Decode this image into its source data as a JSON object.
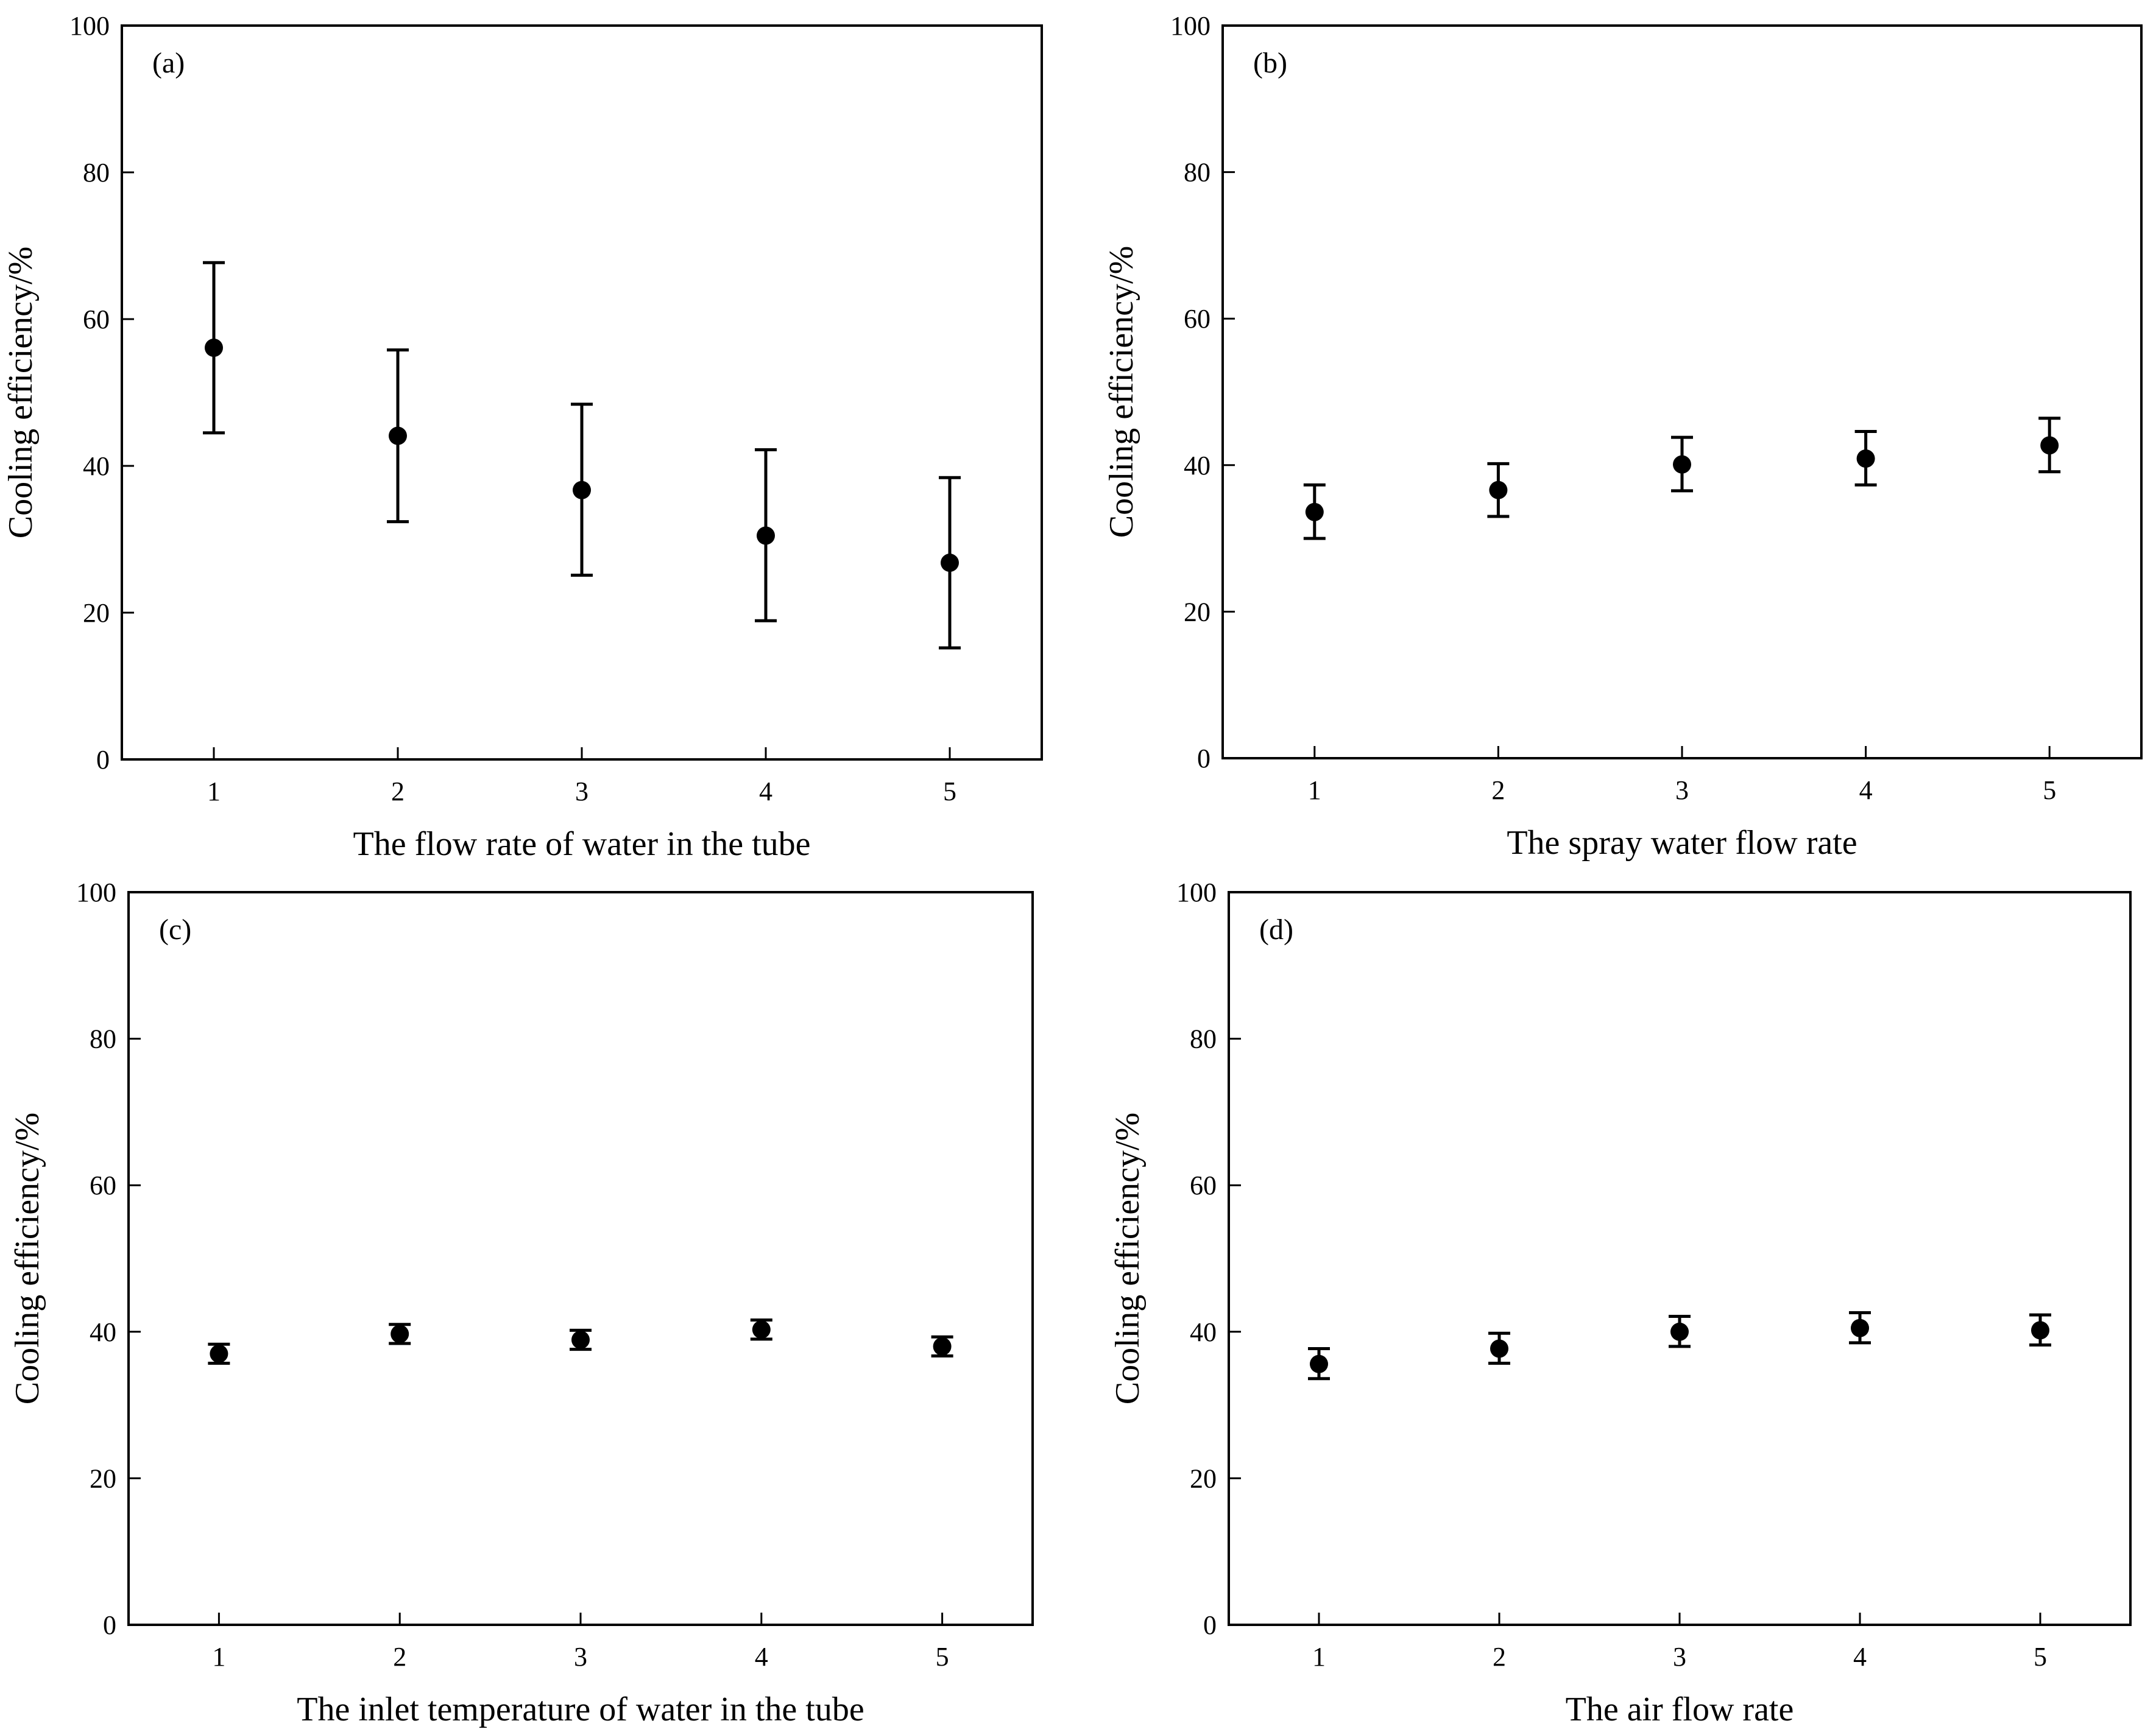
{
  "chart_data": [
    {
      "type": "scatter",
      "panel_label": "(a)",
      "title": "",
      "xlabel": "The flow rate of water in the tube",
      "ylabel": "Cooling efficiency/%",
      "x": [
        1,
        2,
        3,
        4,
        5
      ],
      "x_tick_labels": [
        "1",
        "2",
        "3",
        "4",
        "5"
      ],
      "xlim": [
        0.5,
        5.5
      ],
      "ylim": [
        0,
        100
      ],
      "y_ticks": [
        0,
        20,
        40,
        60,
        80,
        100
      ],
      "y_tick_labels": [
        "0",
        "20",
        "40",
        "60",
        "80",
        "100"
      ],
      "values": [
        56.1,
        44.1,
        36.7,
        30.5,
        26.8
      ],
      "error_low": [
        44.5,
        32.4,
        25.1,
        18.9,
        15.2
      ],
      "error_high": [
        67.7,
        55.8,
        48.4,
        42.2,
        38.4
      ],
      "grid": false,
      "marker_color": "#000000"
    },
    {
      "type": "scatter",
      "panel_label": "(b)",
      "title": "",
      "xlabel": "The spray water flow rate",
      "ylabel": "Cooling efficiency/%",
      "x": [
        1,
        2,
        3,
        4,
        5
      ],
      "x_tick_labels": [
        "1",
        "2",
        "3",
        "4",
        "5"
      ],
      "xlim": [
        0.5,
        5.5
      ],
      "ylim": [
        0,
        100
      ],
      "y_ticks": [
        0,
        20,
        40,
        60,
        80,
        100
      ],
      "y_tick_labels": [
        "0",
        "20",
        "40",
        "60",
        "80",
        "100"
      ],
      "values": [
        33.6,
        36.6,
        40.1,
        40.9,
        42.7
      ],
      "error_low": [
        30.0,
        33.0,
        36.5,
        37.3,
        39.1
      ],
      "error_high": [
        37.3,
        40.2,
        43.8,
        44.6,
        46.4
      ],
      "grid": false,
      "marker_color": "#000000"
    },
    {
      "type": "scatter",
      "panel_label": "(c)",
      "title": "",
      "xlabel": "The inlet temperature of water in the tube",
      "ylabel": "Cooling efficiency/%",
      "x": [
        1,
        2,
        3,
        4,
        5
      ],
      "x_tick_labels": [
        "1",
        "2",
        "3",
        "4",
        "5"
      ],
      "xlim": [
        0.5,
        5.5
      ],
      "ylim": [
        0,
        100
      ],
      "y_ticks": [
        0,
        20,
        40,
        60,
        80,
        100
      ],
      "y_tick_labels": [
        "0",
        "20",
        "40",
        "60",
        "80",
        "100"
      ],
      "values": [
        37.0,
        39.7,
        38.9,
        40.3,
        38.0
      ],
      "error_low": [
        35.7,
        38.4,
        37.6,
        39.0,
        36.7
      ],
      "error_high": [
        38.3,
        41.0,
        40.2,
        41.6,
        39.3
      ],
      "grid": false,
      "marker_color": "#000000"
    },
    {
      "type": "scatter",
      "panel_label": "(d)",
      "title": "",
      "xlabel": "The air flow rate",
      "ylabel": "Cooling efficiency/%",
      "x": [
        1,
        2,
        3,
        4,
        5
      ],
      "x_tick_labels": [
        "1",
        "2",
        "3",
        "4",
        "5"
      ],
      "xlim": [
        0.5,
        5.5
      ],
      "ylim": [
        0,
        100
      ],
      "y_ticks": [
        0,
        20,
        40,
        60,
        80,
        100
      ],
      "y_tick_labels": [
        "0",
        "20",
        "40",
        "60",
        "80",
        "100"
      ],
      "values": [
        35.6,
        37.7,
        40.0,
        40.5,
        40.2
      ],
      "error_low": [
        33.6,
        35.7,
        38.0,
        38.5,
        38.2
      ],
      "error_high": [
        37.7,
        39.8,
        42.1,
        42.6,
        42.3
      ],
      "grid": false,
      "marker_color": "#000000"
    }
  ]
}
